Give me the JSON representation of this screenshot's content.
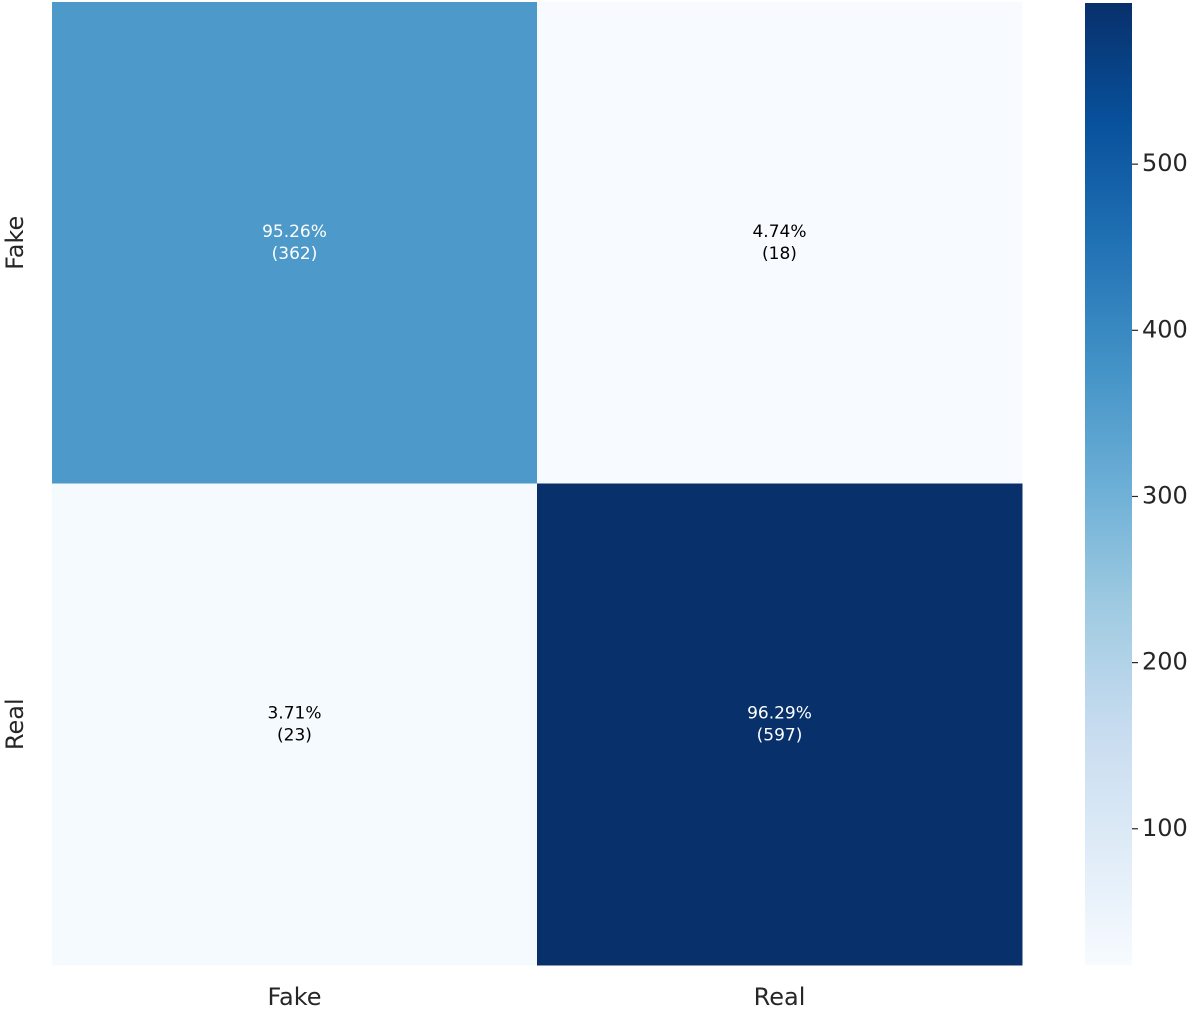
{
  "chart_data": {
    "type": "heatmap",
    "rows": [
      "Fake",
      "Real"
    ],
    "columns": [
      "Fake",
      "Real"
    ],
    "values": [
      [
        362,
        18
      ],
      [
        23,
        597
      ]
    ],
    "value_labels": [
      [
        [
          "95.26%",
          "(362)"
        ],
        [
          "4.74%",
          "(18)"
        ]
      ],
      [
        [
          "3.71%",
          "(23)"
        ],
        [
          "96.29%",
          "(597)"
        ]
      ]
    ],
    "colormap": [
      "#f7fbff",
      "#deebf7",
      "#c6dbef",
      "#9ecae1",
      "#6baed6",
      "#4292c6",
      "#2171b5",
      "#08519c",
      "#08306b"
    ],
    "clim": [
      18,
      597
    ],
    "cticks": [
      100,
      200,
      300,
      400,
      500
    ]
  }
}
